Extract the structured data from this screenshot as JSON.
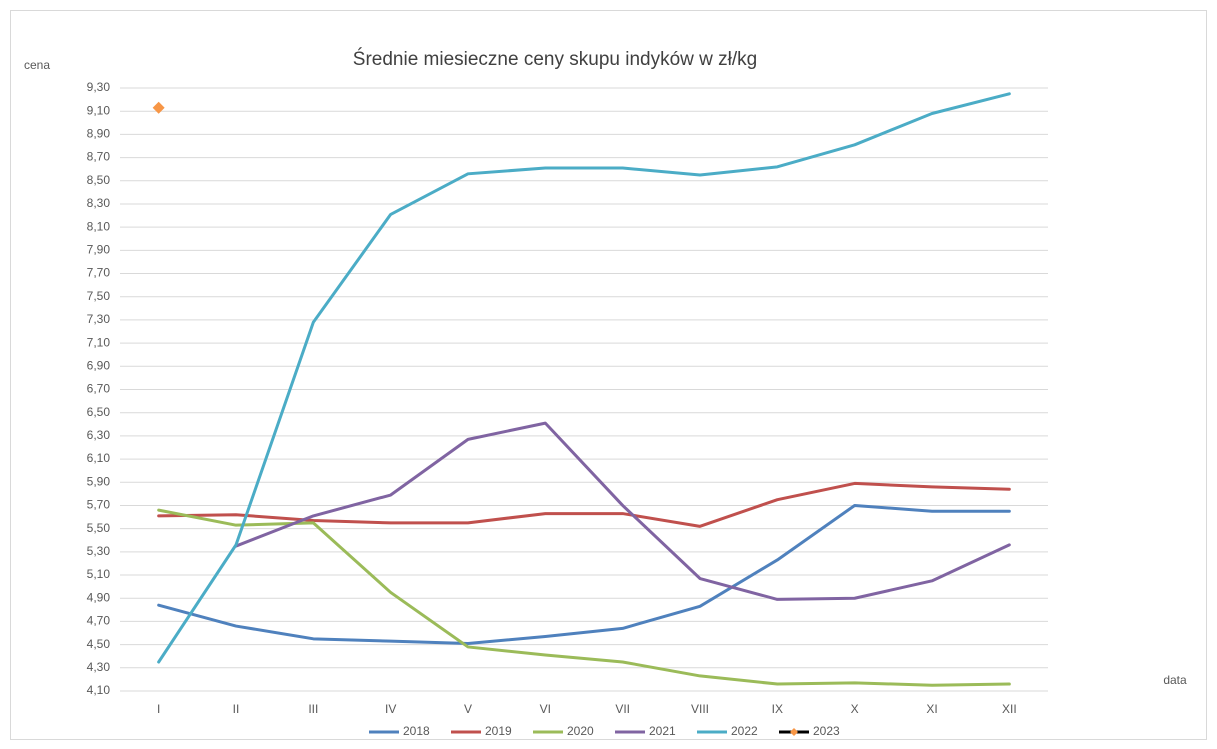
{
  "chart_data": {
    "type": "line",
    "title": "Średnie miesieczne ceny skupu indyków w zł/kg",
    "y_label": "cena",
    "x_label": "data",
    "categories": [
      "I",
      "II",
      "III",
      "IV",
      "V",
      "VI",
      "VII",
      "VIII",
      "IX",
      "X",
      "XI",
      "XII"
    ],
    "ylim": [
      4.1,
      9.3
    ],
    "yticks": [
      {
        "value": 4.1,
        "label": "4,10"
      },
      {
        "value": 4.3,
        "label": "4,30"
      },
      {
        "value": 4.5,
        "label": "4,50"
      },
      {
        "value": 4.7,
        "label": "4,70"
      },
      {
        "value": 4.9,
        "label": "4,90"
      },
      {
        "value": 5.1,
        "label": "5,10"
      },
      {
        "value": 5.3,
        "label": "5,30"
      },
      {
        "value": 5.5,
        "label": "5,50"
      },
      {
        "value": 5.7,
        "label": "5,70"
      },
      {
        "value": 5.9,
        "label": "5,90"
      },
      {
        "value": 6.1,
        "label": "6,10"
      },
      {
        "value": 6.3,
        "label": "6,30"
      },
      {
        "value": 6.5,
        "label": "6,50"
      },
      {
        "value": 6.7,
        "label": "6,70"
      },
      {
        "value": 6.9,
        "label": "6,90"
      },
      {
        "value": 7.1,
        "label": "7,10"
      },
      {
        "value": 7.3,
        "label": "7,30"
      },
      {
        "value": 7.5,
        "label": "7,50"
      },
      {
        "value": 7.7,
        "label": "7,70"
      },
      {
        "value": 7.9,
        "label": "7,90"
      },
      {
        "value": 8.1,
        "label": "8,10"
      },
      {
        "value": 8.3,
        "label": "8,30"
      },
      {
        "value": 8.5,
        "label": "8,50"
      },
      {
        "value": 8.7,
        "label": "8,70"
      },
      {
        "value": 8.9,
        "label": "8,90"
      },
      {
        "value": 9.1,
        "label": "9,10"
      },
      {
        "value": 9.3,
        "label": "9,30"
      }
    ],
    "grid": true,
    "legend": "bottom",
    "series": [
      {
        "name": "2018",
        "color": "#4f81bd",
        "values": [
          4.84,
          4.66,
          4.55,
          4.53,
          4.51,
          4.57,
          4.64,
          4.83,
          5.23,
          5.7,
          5.65,
          5.65
        ]
      },
      {
        "name": "2019",
        "color": "#c0504d",
        "values": [
          5.61,
          5.62,
          5.57,
          5.55,
          5.55,
          5.63,
          5.63,
          5.52,
          5.75,
          5.89,
          5.86,
          5.84
        ]
      },
      {
        "name": "2020",
        "color": "#9bbb59",
        "values": [
          5.66,
          5.53,
          5.55,
          4.95,
          4.48,
          4.41,
          4.35,
          4.23,
          4.16,
          4.17,
          4.15,
          4.16
        ]
      },
      {
        "name": "2021",
        "color": "#8064a2",
        "values": [
          null,
          5.35,
          5.61,
          5.79,
          6.27,
          6.41,
          5.7,
          5.07,
          4.89,
          4.9,
          5.05,
          5.36
        ]
      },
      {
        "name": "2022",
        "color": "#4bacc6",
        "values": [
          4.35,
          5.36,
          7.28,
          8.21,
          8.56,
          8.61,
          8.61,
          8.55,
          8.62,
          8.81,
          9.08,
          9.25
        ]
      },
      {
        "name": "2023",
        "color": "#000000",
        "marker_color": "#f79646",
        "values": [
          9.13,
          null,
          null,
          null,
          null,
          null,
          null,
          null,
          null,
          null,
          null,
          null
        ]
      }
    ]
  }
}
